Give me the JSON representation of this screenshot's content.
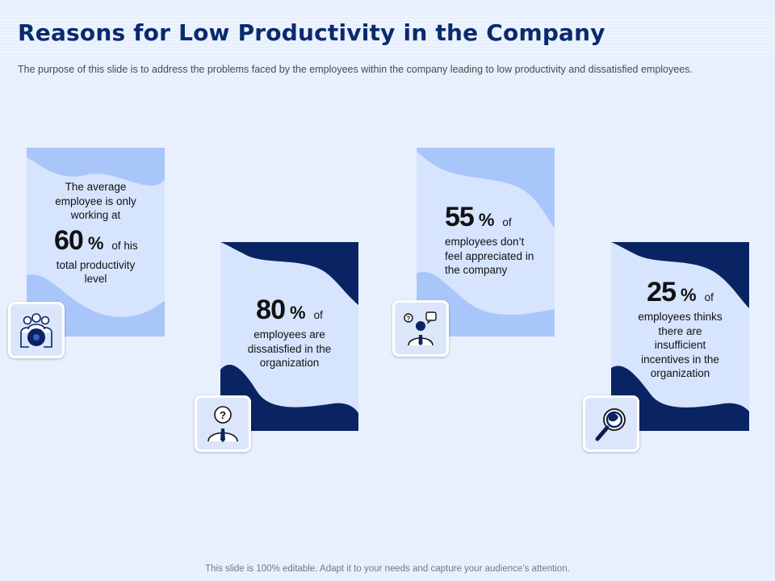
{
  "slide": {
    "title": "Reasons for Low Productivity in the Company",
    "subtitle": "The purpose of this slide is to address the problems faced by the employees within the company leading to low productivity and dissatisfied employees.",
    "footer": "This slide is 100% editable. Adapt it to your needs and capture your audience’s attention."
  },
  "colors": {
    "background": "#e9f0fd",
    "card_fill": "#d6e4fd",
    "wave_light": "#a9c6fb",
    "wave_dark": "#0a2463",
    "title": "#0a2a6e"
  },
  "cards": [
    {
      "intro": "The average employee is only working at",
      "value": "60",
      "percent": "%",
      "after": "of his",
      "rest": "total productivity level",
      "icon": "team-icon"
    },
    {
      "value": "80",
      "percent": "%",
      "after": "of",
      "rest": "employees are dissatisfied in the organization",
      "icon": "question-person-icon"
    },
    {
      "value": "55",
      "percent": "%",
      "after": "of",
      "rest": "employees don’t feel appreciated in the company",
      "icon": "chat-person-icon"
    },
    {
      "value": "25",
      "percent": "%",
      "after": "of",
      "rest": "employees thinks there are insufficient incentives in the organization",
      "icon": "magnifier-icon"
    }
  ]
}
